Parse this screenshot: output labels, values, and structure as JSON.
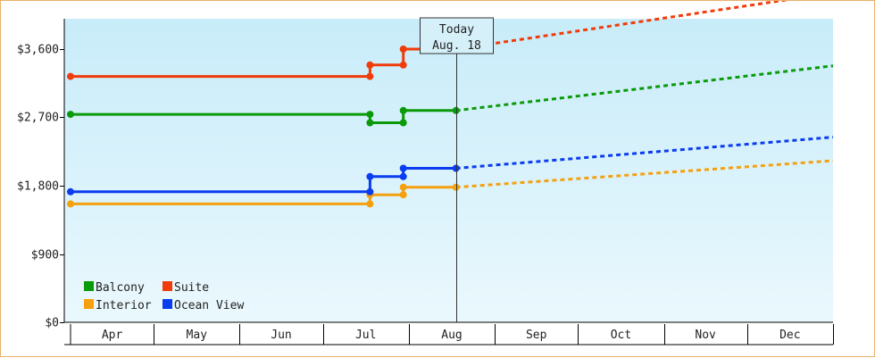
{
  "chart_data": {
    "type": "line",
    "title": "",
    "xlabel": "",
    "ylabel": "",
    "ylim": [
      0,
      4000
    ],
    "yticks": [
      {
        "value": 0,
        "label": "$0"
      },
      {
        "value": 900,
        "label": "$900"
      },
      {
        "value": 1800,
        "label": "$1,800"
      },
      {
        "value": 2700,
        "label": "$2,700"
      },
      {
        "value": 3600,
        "label": "$3,600"
      }
    ],
    "x_axis": {
      "type": "date",
      "start": "2020-04-01",
      "end": "2021-01-01",
      "months": [
        {
          "label": "Apr",
          "start": "2020-04-01"
        },
        {
          "label": "May",
          "start": "2020-05-01"
        },
        {
          "label": "Jun",
          "start": "2020-06-01"
        },
        {
          "label": "Jul",
          "start": "2020-07-01"
        },
        {
          "label": "Aug",
          "start": "2020-08-01"
        },
        {
          "label": "Sep",
          "start": "2020-09-01"
        },
        {
          "label": "Oct",
          "start": "2020-10-01"
        },
        {
          "label": "Nov",
          "start": "2020-11-01"
        },
        {
          "label": "Dec",
          "start": "2020-12-01"
        }
      ]
    },
    "today": {
      "line1": "Today",
      "line2": "Aug. 18",
      "date": "2020-08-18"
    },
    "grid": false,
    "legend_position": "bottom-left",
    "series": [
      {
        "name": "Balcony",
        "color": "#0a9a0a",
        "history": [
          [
            "2020-04-01",
            2740
          ],
          [
            "2020-07-18",
            2740
          ],
          [
            "2020-07-18",
            2630
          ],
          [
            "2020-07-30",
            2630
          ],
          [
            "2020-07-30",
            2790
          ],
          [
            "2020-08-18",
            2790
          ]
        ],
        "forecast": [
          [
            "2020-08-18",
            2790
          ],
          [
            "2021-01-01",
            3380
          ]
        ]
      },
      {
        "name": "Suite",
        "color": "#f03c0a",
        "history": [
          [
            "2020-04-01",
            3240
          ],
          [
            "2020-07-18",
            3240
          ],
          [
            "2020-07-18",
            3390
          ],
          [
            "2020-07-30",
            3390
          ],
          [
            "2020-07-30",
            3600
          ],
          [
            "2020-08-18",
            3600
          ]
        ],
        "forecast": [
          [
            "2020-08-18",
            3600
          ],
          [
            "2021-01-01",
            4340
          ]
        ]
      },
      {
        "name": "Interior",
        "color": "#f5a00f",
        "history": [
          [
            "2020-04-01",
            1560
          ],
          [
            "2020-07-18",
            1560
          ],
          [
            "2020-07-18",
            1680
          ],
          [
            "2020-07-30",
            1680
          ],
          [
            "2020-07-30",
            1780
          ],
          [
            "2020-08-18",
            1780
          ]
        ],
        "forecast": [
          [
            "2020-08-18",
            1780
          ],
          [
            "2021-01-01",
            2130
          ]
        ]
      },
      {
        "name": "Ocean View",
        "color": "#0a3cf0",
        "history": [
          [
            "2020-04-01",
            1720
          ],
          [
            "2020-07-18",
            1720
          ],
          [
            "2020-07-18",
            1920
          ],
          [
            "2020-07-30",
            1920
          ],
          [
            "2020-07-30",
            2030
          ],
          [
            "2020-08-18",
            2030
          ]
        ],
        "forecast": [
          [
            "2020-08-18",
            2030
          ],
          [
            "2021-01-01",
            2440
          ]
        ]
      }
    ]
  }
}
